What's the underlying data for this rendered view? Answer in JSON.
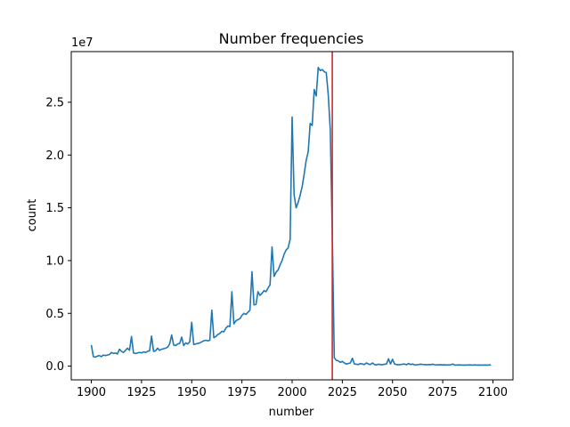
{
  "chart_data": {
    "type": "line",
    "title": "Number frequencies",
    "xlabel": "number",
    "ylabel": "count",
    "y_scale_label": "1e7",
    "xlim": [
      1890,
      2110
    ],
    "ylim": [
      -1300000,
      29800000
    ],
    "x_ticks": [
      1900,
      1925,
      1950,
      1975,
      2000,
      2025,
      2050,
      2075,
      2100
    ],
    "y_ticks": [
      0,
      5000000,
      10000000,
      15000000,
      20000000,
      25000000
    ],
    "y_tick_labels": [
      "0.0",
      "0.5",
      "1.0",
      "1.5",
      "2.0",
      "2.5"
    ],
    "grid": false,
    "line_color": "#1f77b4",
    "vline": {
      "x": 2020,
      "color": "#d62728"
    },
    "series": [
      {
        "x": [
          1900,
          1901,
          1902,
          1903,
          1904,
          1905,
          1906,
          1907,
          1908,
          1909,
          1910,
          1911,
          1912,
          1913,
          1914,
          1915,
          1916,
          1917,
          1918,
          1919,
          1920,
          1921,
          1922,
          1923,
          1924,
          1925,
          1926,
          1927,
          1928,
          1929,
          1930,
          1931,
          1932,
          1933,
          1934,
          1935,
          1936,
          1937,
          1938,
          1939,
          1940,
          1941,
          1942,
          1943,
          1944,
          1945,
          1946,
          1947,
          1948,
          1949,
          1950,
          1951,
          1952,
          1953,
          1954,
          1955,
          1956,
          1957,
          1958,
          1959,
          1960,
          1961,
          1962,
          1963,
          1964,
          1965,
          1966,
          1967,
          1968,
          1969,
          1970,
          1971,
          1972,
          1973,
          1974,
          1975,
          1976,
          1977,
          1978,
          1979,
          1980,
          1981,
          1982,
          1983,
          1984,
          1985,
          1986,
          1987,
          1988,
          1989,
          1990,
          1991,
          1992,
          1993,
          1994,
          1995,
          1996,
          1997,
          1998,
          1999,
          2000,
          2001,
          2002,
          2003,
          2004,
          2005,
          2006,
          2007,
          2008,
          2009,
          2010,
          2011,
          2012,
          2013,
          2014,
          2015,
          2016,
          2017,
          2018,
          2019,
          2020,
          2021,
          2022,
          2023,
          2024,
          2025,
          2026,
          2027,
          2028,
          2029,
          2030,
          2031,
          2032,
          2033,
          2034,
          2035,
          2036,
          2037,
          2038,
          2039,
          2040,
          2041,
          2042,
          2043,
          2044,
          2045,
          2046,
          2047,
          2048,
          2049,
          2050,
          2051,
          2052,
          2053,
          2054,
          2055,
          2056,
          2057,
          2058,
          2059,
          2060,
          2061,
          2062,
          2063,
          2064,
          2065,
          2066,
          2067,
          2068,
          2069,
          2070,
          2071,
          2072,
          2073,
          2074,
          2075,
          2076,
          2077,
          2078,
          2079,
          2080,
          2081,
          2082,
          2083,
          2084,
          2085,
          2086,
          2087,
          2088,
          2089,
          2090,
          2091,
          2092,
          2093,
          2094,
          2095,
          2096,
          2097,
          2098,
          2099
        ],
        "y": [
          2000000,
          900000,
          850000,
          950000,
          1000000,
          900000,
          1050000,
          1000000,
          1050000,
          1100000,
          1300000,
          1200000,
          1250000,
          1150000,
          1600000,
          1400000,
          1300000,
          1500000,
          1700000,
          1500000,
          2800000,
          1250000,
          1200000,
          1250000,
          1300000,
          1250000,
          1350000,
          1300000,
          1400000,
          1450000,
          2850000,
          1400000,
          1450000,
          1700000,
          1500000,
          1600000,
          1650000,
          1700000,
          1800000,
          2100000,
          2950000,
          2000000,
          1950000,
          2100000,
          2150000,
          2750000,
          1950000,
          2200000,
          2100000,
          2300000,
          4150000,
          2050000,
          2100000,
          2150000,
          2200000,
          2300000,
          2400000,
          2450000,
          2400000,
          2450000,
          5300000,
          2700000,
          2800000,
          3000000,
          3100000,
          3300000,
          3250000,
          3600000,
          3800000,
          3750000,
          7050000,
          4000000,
          4300000,
          4400000,
          4500000,
          4800000,
          5000000,
          4900000,
          5100000,
          5300000,
          8950000,
          5800000,
          5850000,
          7050000,
          6700000,
          6900000,
          7150000,
          7050000,
          7400000,
          7700000,
          11300000,
          8500000,
          8900000,
          9100000,
          9600000,
          10000000,
          10600000,
          11000000,
          11200000,
          12000000,
          23600000,
          16200000,
          15000000,
          15500000,
          16200000,
          17000000,
          18200000,
          19500000,
          20300000,
          23000000,
          22800000,
          26200000,
          25600000,
          28300000,
          28000000,
          28100000,
          27900000,
          27800000,
          25700000,
          22400000,
          12500000,
          800000,
          550000,
          500000,
          350000,
          450000,
          300000,
          200000,
          250000,
          300000,
          750000,
          200000,
          180000,
          150000,
          250000,
          200000,
          150000,
          300000,
          200000,
          150000,
          300000,
          150000,
          120000,
          180000,
          150000,
          130000,
          180000,
          200000,
          700000,
          200000,
          650000,
          200000,
          150000,
          130000,
          150000,
          180000,
          200000,
          130000,
          250000,
          150000,
          200000,
          120000,
          130000,
          150000,
          180000,
          160000,
          150000,
          130000,
          150000,
          140000,
          180000,
          130000,
          120000,
          130000,
          140000,
          120000,
          130000,
          110000,
          120000,
          130000,
          200000,
          100000,
          110000,
          120000,
          110000,
          100000,
          110000,
          100000,
          120000,
          110000,
          100000,
          120000,
          100000,
          110000,
          100000,
          100000,
          110000,
          100000,
          110000,
          120000
        ]
      }
    ]
  }
}
